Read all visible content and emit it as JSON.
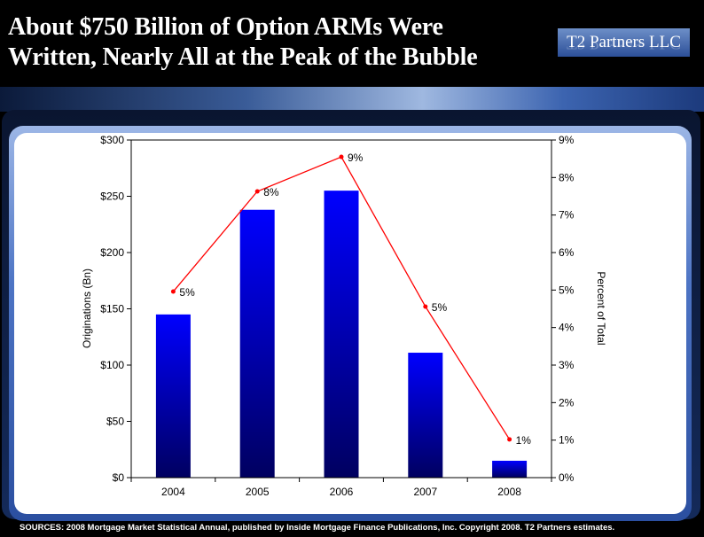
{
  "header": {
    "title_line1": "About $750 Billion of Option ARMs Were",
    "title_line2": "Written, Nearly All at the Peak of the Bubble",
    "logo": "T2 Partners LLC"
  },
  "footer": {
    "sources": "SOURCES: 2008 Mortgage Market Statistical Annual, published by Inside Mortgage Finance Publications, Inc. Copyright 2008. T2 Partners estimates."
  },
  "colors": {
    "bar_top": "#0000ff",
    "bar_bottom": "#000060",
    "line": "#ff0000"
  },
  "chart_data": {
    "type": "bar+line",
    "categories": [
      "2004",
      "2005",
      "2006",
      "2007",
      "2008"
    ],
    "series": [
      {
        "name": "Originations (Bn)",
        "type": "bar",
        "axis": "left",
        "values": [
          145,
          238,
          255,
          111,
          15
        ]
      },
      {
        "name": "Percent of Total",
        "type": "line",
        "axis": "right",
        "values": [
          4.96,
          7.63,
          8.55,
          4.56,
          1.02
        ],
        "data_labels": [
          "5%",
          "8%",
          "9%",
          "5%",
          "1%"
        ]
      }
    ],
    "ylabel": "Originations (Bn)",
    "y2label": "Percent of Total",
    "ylim": [
      0,
      300
    ],
    "y2lim": [
      0,
      9
    ],
    "yticks": [
      "$0",
      "$50",
      "$100",
      "$150",
      "$200",
      "$250",
      "$300"
    ],
    "y2ticks": [
      "0%",
      "1%",
      "2%",
      "3%",
      "4%",
      "5%",
      "6%",
      "7%",
      "8%",
      "9%"
    ],
    "grid": false
  }
}
